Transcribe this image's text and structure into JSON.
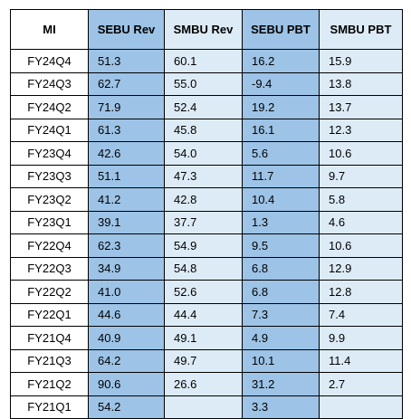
{
  "table": {
    "headers": [
      "MI",
      "SEBU Rev",
      "SMBU Rev",
      "SEBU PBT",
      "SMBU PBT"
    ],
    "header_colors": {
      "sebu": "#9dc3e6",
      "smbu": "#ddebf7"
    },
    "rows": [
      [
        "FY24Q4",
        "51.3",
        "60.1",
        "16.2",
        "15.9"
      ],
      [
        "FY24Q3",
        "62.7",
        "55.0",
        "-9.4",
        "13.8"
      ],
      [
        "FY24Q2",
        "71.9",
        "52.4",
        "19.2",
        "13.7"
      ],
      [
        "FY24Q1",
        "61.3",
        "45.8",
        "16.1",
        "12.3"
      ],
      [
        "FY23Q4",
        "42.6",
        "54.0",
        "5.6",
        "10.6"
      ],
      [
        "FY23Q3",
        "51.1",
        "47.3",
        "11.7",
        "9.7"
      ],
      [
        "FY23Q2",
        "41.2",
        "42.8",
        "10.4",
        "5.8"
      ],
      [
        "FY23Q1",
        "39.1",
        "37.7",
        "1.3",
        "4.6"
      ],
      [
        "FY22Q4",
        "62.3",
        "54.9",
        "9.5",
        "10.6"
      ],
      [
        "FY22Q3",
        "34.9",
        "54.8",
        "6.8",
        "12.9"
      ],
      [
        "FY22Q2",
        "41.0",
        "52.6",
        "6.8",
        "12.8"
      ],
      [
        "FY22Q1",
        "44.6",
        "44.4",
        "7.3",
        "7.4"
      ],
      [
        "FY21Q4",
        "40.9",
        "49.1",
        "4.9",
        "9.9"
      ],
      [
        "FY21Q3",
        "64.2",
        "49.7",
        "10.1",
        "11.4"
      ],
      [
        "FY21Q2",
        "90.6",
        "26.6",
        "31.2",
        "2.7"
      ],
      [
        "FY21Q1",
        "54.2",
        "",
        "3.3",
        ""
      ]
    ]
  }
}
